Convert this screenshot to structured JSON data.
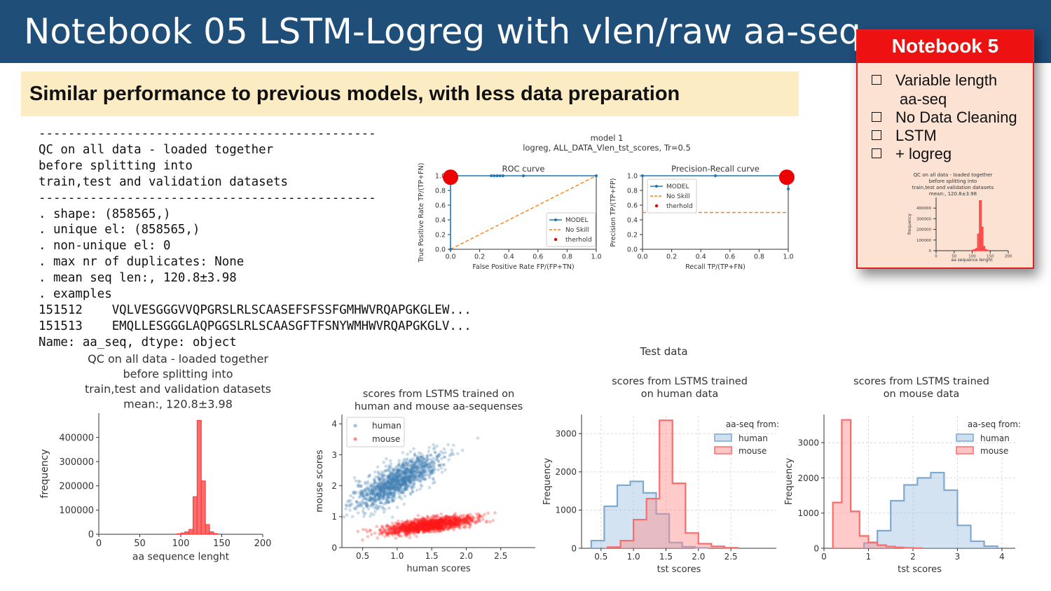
{
  "slide": {
    "title": "Notebook 05 LSTM-Logreg with vlen/raw aa-seq",
    "subtitle": "Similar performance to previous models, with less data preparation",
    "console_lines": [
      "----------------------------------------------",
      "QC on all data - loaded together",
      "before splitting into",
      "train,test and validation datasets",
      "----------------------------------------------",
      ". shape: (858565,)",
      ". unique el: (858565,)",
      ". non-unique el: 0",
      ". max nr of duplicates: None",
      ". mean seq len:, 120.8±3.98",
      ". examples",
      "151512    VQLVESGGGVVQPGRSLRLSCAASEFSFSSFGMHWVRQAPGKGLEW...",
      "151513    EMQLLESGGGLAQPGGSLRLSCAASGFTFSNYWMHWVRQAPGKGLV...",
      "Name: aa_seq, dtype: object"
    ],
    "notebook_box": {
      "title": "Notebook 5",
      "items": [
        "Variable length",
        "aa-seq",
        "No Data Cleaning",
        "LSTM",
        "+ logreg"
      ],
      "mini_title_lines": [
        "QC on all data - loaded together",
        "before splitting into",
        "train,test and validation datasets",
        "mean:, 120.8±3.98"
      ],
      "mini_ylabel": "frequency",
      "mini_xlabel": "aa sequence lenght",
      "mini_yticks": [
        "0",
        "100000",
        "200000",
        "300000",
        "400000"
      ],
      "mini_xticks": [
        "0",
        "50",
        "100",
        "150",
        "200"
      ]
    },
    "test_data_label": "Test data",
    "accent_colors": {
      "header": "#1f4e79",
      "subtitle_bg": "#fcecc4",
      "notebook_red": "#ee1111",
      "notebook_bg": "#fbe2d3"
    }
  },
  "chart_data": [
    {
      "id": "roc",
      "type": "line",
      "suptitle_lines": [
        "model 1",
        "logreg, ALL_DATA_Vlen_tst_scores, Tr=0.5"
      ],
      "title": "ROC curve",
      "xlabel": "False Positive Rate  FP/(FP+TN)",
      "ylabel": "True Positive Rate TP/(TP+FN)",
      "xlim": [
        0,
        1
      ],
      "ylim": [
        0,
        1
      ],
      "xticks": [
        "0.0",
        "0.2",
        "0.4",
        "0.6",
        "0.8",
        "1.0"
      ],
      "yticks": [
        "0.0",
        "0.2",
        "0.4",
        "0.6",
        "0.8",
        "1.0"
      ],
      "grid": false,
      "legend": "lower-right",
      "series": [
        {
          "name": "MODEL",
          "x": [
            0,
            0,
            0.02,
            0.28,
            0.3,
            0.32,
            0.34,
            0.36,
            0.5,
            1
          ],
          "y": [
            0,
            0.97,
            1,
            1,
            1,
            1,
            1,
            1,
            1,
            1
          ],
          "color": "#1f77b4"
        },
        {
          "name": "No Skill",
          "x": [
            0,
            1
          ],
          "y": [
            0,
            1
          ],
          "color": "#ff7f0e"
        },
        {
          "name": "therhold",
          "x": [
            0.0
          ],
          "y": [
            0.98
          ],
          "color": "#ee0000"
        }
      ]
    },
    {
      "id": "pr",
      "type": "line",
      "title": "Precision-Recall curve",
      "xlabel": "Recall TP/(TP+FN)",
      "ylabel": "Precision TP/(TP+FP)",
      "xlim": [
        0,
        1
      ],
      "ylim": [
        0,
        1
      ],
      "xticks": [
        "0.0",
        "0.2",
        "0.4",
        "0.6",
        "0.8",
        "1.0"
      ],
      "yticks": [
        "0.0",
        "0.2",
        "0.4",
        "0.6",
        "0.8",
        "1.0"
      ],
      "grid": false,
      "legend": "upper-left",
      "series": [
        {
          "name": "MODEL",
          "x": [
            0,
            0.5,
            0.99,
            1.0,
            1.0
          ],
          "y": [
            1,
            1,
            1,
            0.98,
            0.82
          ],
          "color": "#1f77b4"
        },
        {
          "name": "No Skill",
          "x": [
            0,
            1
          ],
          "y": [
            0.5,
            0.5
          ],
          "color": "#ff7f0e"
        },
        {
          "name": "therhold",
          "x": [
            0.99
          ],
          "y": [
            0.98
          ],
          "color": "#ee0000"
        }
      ]
    },
    {
      "id": "len_hist",
      "type": "bar",
      "title_lines": [
        "QC on all data - loaded together",
        "before splitting into",
        "train,test and validation datasets",
        "mean:, 120.8±3.98"
      ],
      "xlabel": "aa sequence lenght",
      "ylabel": "frequency",
      "xlim": [
        0,
        200
      ],
      "ylim": [
        0,
        500000
      ],
      "xticks": [
        0,
        50,
        100,
        150,
        200
      ],
      "yticks": [
        0,
        100000,
        200000,
        300000,
        400000
      ],
      "tick_labels_y": [
        "0",
        "100000",
        "200000",
        "300000",
        "400000"
      ],
      "bin_width": 5,
      "bins": [
        95,
        100,
        105,
        110,
        115,
        120,
        125,
        130,
        135,
        140
      ],
      "values": [
        2000,
        5000,
        10000,
        20000,
        155000,
        470000,
        220000,
        40000,
        10000,
        3000
      ],
      "color": "#ff3b3b"
    },
    {
      "id": "scatter",
      "type": "scatter",
      "title_lines": [
        "scores from LSTMS trained on",
        "human and mouse aa-sequenses"
      ],
      "xlabel": "human scores",
      "ylabel": "mouse scores",
      "xlim": [
        0.2,
        3.0
      ],
      "ylim": [
        0,
        4.3
      ],
      "xticks": [
        0.5,
        1.0,
        1.5,
        2.0,
        2.5
      ],
      "yticks": [
        0,
        1,
        2,
        3,
        4
      ],
      "legend": "upper-left",
      "series": [
        {
          "name": "human",
          "center": [
            1.0,
            2.15
          ],
          "spread": [
            0.3,
            0.45
          ],
          "slope": 1.1,
          "color": "#4682b4"
        },
        {
          "name": "mouse",
          "center": [
            1.45,
            0.72
          ],
          "spread": [
            0.32,
            0.18
          ],
          "slope": 0.28,
          "color": "#ff1a1a"
        }
      ]
    },
    {
      "id": "hist_human",
      "type": "bar",
      "title_lines": [
        "scores from LSTMS trained",
        "on human data"
      ],
      "xlabel": "tst scores",
      "ylabel": "Frequency",
      "xlim": [
        0.2,
        3.2
      ],
      "ylim": [
        0,
        3500
      ],
      "xticks": [
        0.5,
        1.0,
        1.5,
        2.0,
        2.5
      ],
      "yticks": [
        0,
        1000,
        2000,
        3000
      ],
      "legend_title": "aa-seq from:",
      "legend": "upper-right",
      "series": [
        {
          "name": "human",
          "edges": [
            0.35,
            0.55,
            0.75,
            0.95,
            1.15,
            1.35,
            1.55,
            1.75,
            1.95,
            2.15
          ],
          "values": [
            200,
            1100,
            1650,
            1750,
            1450,
            900,
            150,
            40,
            10
          ],
          "color": "#9ec2e0"
        },
        {
          "name": "mouse",
          "edges": [
            0.6,
            0.8,
            1.0,
            1.2,
            1.4,
            1.6,
            1.8,
            2.0,
            2.2,
            2.4,
            2.6
          ],
          "values": [
            30,
            200,
            750,
            1300,
            3350,
            1700,
            400,
            120,
            50,
            15
          ],
          "color": "#ff8a8a"
        }
      ]
    },
    {
      "id": "hist_mouse",
      "type": "bar",
      "title_lines": [
        "scores from LSTMS trained",
        "on mouse data"
      ],
      "xlabel": "tst scores",
      "ylabel": "Frequency",
      "xlim": [
        0,
        4.3
      ],
      "ylim": [
        0,
        3800
      ],
      "xticks": [
        0,
        1,
        2,
        3,
        4
      ],
      "yticks": [
        0,
        1000,
        2000,
        3000
      ],
      "legend_title": "aa-seq from:",
      "legend": "upper-right",
      "series": [
        {
          "name": "human",
          "edges": [
            0.9,
            1.2,
            1.5,
            1.8,
            2.1,
            2.4,
            2.7,
            3.0,
            3.3,
            3.6,
            3.9
          ],
          "values": [
            150,
            500,
            1350,
            1800,
            2000,
            2150,
            1650,
            650,
            200,
            60
          ],
          "color": "#9ec2e0"
        },
        {
          "name": "mouse",
          "edges": [
            0.2,
            0.4,
            0.6,
            0.8,
            1.0,
            1.2,
            1.4,
            1.6,
            1.8,
            2.0,
            2.2
          ],
          "values": [
            1300,
            3650,
            1050,
            350,
            170,
            90,
            50,
            25,
            12,
            5
          ],
          "color": "#ff8a8a"
        }
      ]
    }
  ]
}
